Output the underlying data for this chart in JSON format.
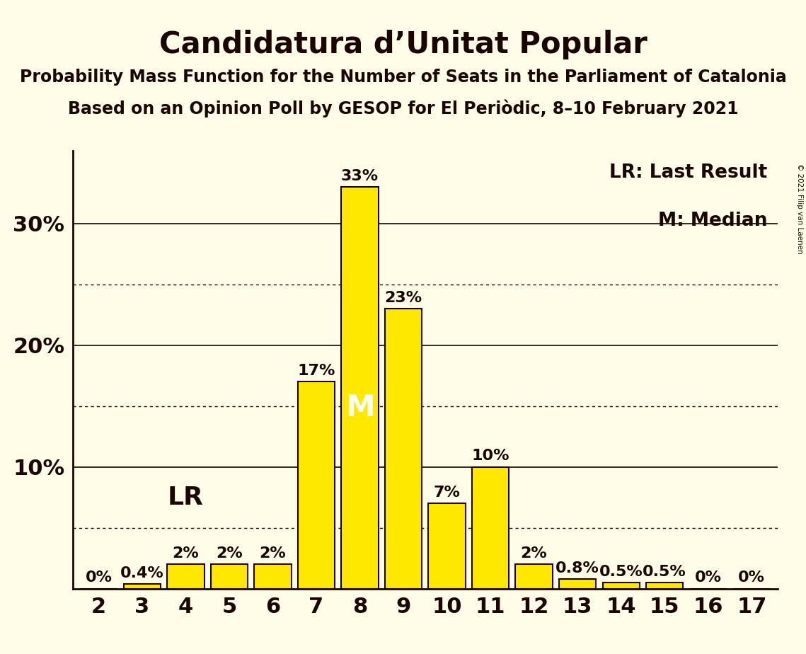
{
  "title": "Candidatura d’Unitat Popular",
  "subtitle1": "Probability Mass Function for the Number of Seats in the Parliament of Catalonia",
  "subtitle2": "Based on an Opinion Poll by GESOP for El Periòdic, 8–10 February 2021",
  "copyright": "© 2021 Filip van Laenen",
  "seats": [
    2,
    3,
    4,
    5,
    6,
    7,
    8,
    9,
    10,
    11,
    12,
    13,
    14,
    15,
    16,
    17
  ],
  "values": [
    0.0,
    0.4,
    2.0,
    2.0,
    2.0,
    17.0,
    33.0,
    23.0,
    7.0,
    10.0,
    2.0,
    0.8,
    0.5,
    0.5,
    0.0,
    0.0
  ],
  "bar_labels": [
    "0%",
    "0.4%",
    "2%",
    "2%",
    "2%",
    "17%",
    "33%",
    "23%",
    "7%",
    "10%",
    "2%",
    "0.8%",
    "0.5%",
    "0.5%",
    "0%",
    "0%"
  ],
  "bar_color": "#FFE800",
  "bar_edge_color": "#1a0500",
  "background_color": "#FFFDE8",
  "text_color": "#1a0500",
  "title_fontsize": 30,
  "subtitle_fontsize": 17,
  "axis_tick_fontsize": 22,
  "bar_label_fontsize": 16,
  "legend_fontsize": 19,
  "lr_seat": 4,
  "median_seat": 8,
  "ylim": [
    0,
    36
  ],
  "yticks": [
    10,
    20,
    30
  ],
  "grid_solid": [
    10,
    20,
    30
  ],
  "grid_dotted": [
    5,
    15,
    25
  ],
  "legend_text1": "LR: Last Result",
  "legend_text2": "M: Median",
  "lr_label": "LR",
  "median_label": "M"
}
